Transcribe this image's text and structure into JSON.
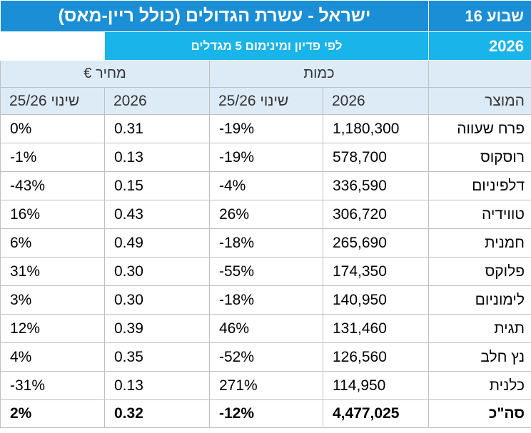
{
  "header": {
    "week": "שבוע 16",
    "title": "ישראל - עשרת הגדולים (כולל ריין-מאס)",
    "year": "2026",
    "subtitle": "לפי פדיון ומינימום 5 מגדלים"
  },
  "groups": {
    "quantity": "כמות",
    "price": "מחיר €"
  },
  "columns": {
    "product": "המוצר",
    "qty_2026": "2026",
    "qty_change": "שינוי 25/26",
    "price_2026": "2026",
    "price_change": "שינוי 25/26"
  },
  "rows": [
    {
      "product": "פרח שעווה",
      "qty": "1,180,300",
      "qty_change": "-19%",
      "price": "0.31",
      "price_change": "0%"
    },
    {
      "product": "רוסקוס",
      "qty": "578,700",
      "qty_change": "-19%",
      "price": "0.13",
      "price_change": "-1%"
    },
    {
      "product": "דלפיניום",
      "qty": "336,590",
      "qty_change": "-4%",
      "price": "0.15",
      "price_change": "-43%"
    },
    {
      "product": "טווידיה",
      "qty": "306,720",
      "qty_change": "26%",
      "price": "0.43",
      "price_change": "16%"
    },
    {
      "product": "חמנית",
      "qty": "265,690",
      "qty_change": "-18%",
      "price": "0.49",
      "price_change": "6%"
    },
    {
      "product": "פלוקס",
      "qty": "174,350",
      "qty_change": "-55%",
      "price": "0.30",
      "price_change": "31%"
    },
    {
      "product": "לימוניום",
      "qty": "140,950",
      "qty_change": "-18%",
      "price": "0.30",
      "price_change": "3%"
    },
    {
      "product": "תגית",
      "qty": "131,460",
      "qty_change": "46%",
      "price": "0.39",
      "price_change": "12%"
    },
    {
      "product": "נץ חלב",
      "qty": "126,560",
      "qty_change": "-52%",
      "price": "0.35",
      "price_change": "4%"
    },
    {
      "product": "כלנית",
      "qty": "114,950",
      "qty_change": "271%",
      "price": "0.13",
      "price_change": "-31%"
    }
  ],
  "total": {
    "product": "סה\"כ",
    "qty": "4,477,025",
    "qty_change": "-12%",
    "price": "0.32",
    "price_change": "2%"
  },
  "colors": {
    "title_bg": "#1a8fd6",
    "subtitle_bg": "#18b4ea",
    "header_bg": "#ddebf7",
    "negative": "#ee1c24"
  }
}
